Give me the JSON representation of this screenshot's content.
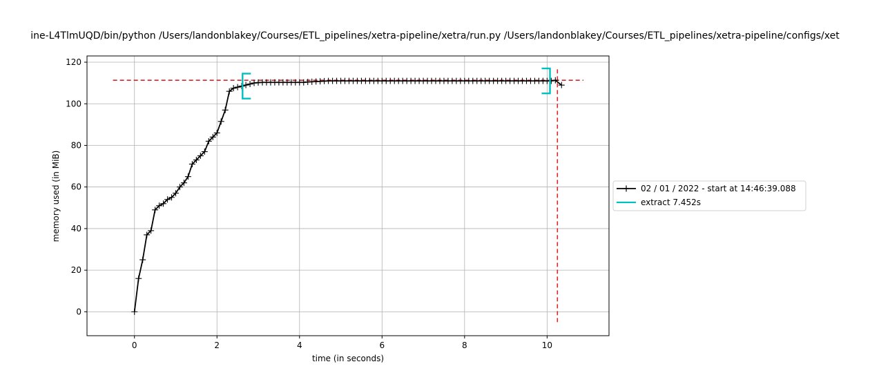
{
  "chart_data": {
    "type": "line",
    "title": "ine-L4TlmUQD/bin/python /Users/landonblakey/Courses/ETL_pipelines/xetra-pipeline/xetra/run.py /Users/landonblakey/Courses/ETL_pipelines/xetra-pipeline/configs/xet",
    "xlabel": "time (in seconds)",
    "ylabel": "memory used (in MiB)",
    "xlim": [
      -1.15,
      11.5
    ],
    "ylim": [
      -11.5,
      123
    ],
    "xticks": [
      0,
      2,
      4,
      6,
      8,
      10
    ],
    "yticks": [
      0,
      20,
      40,
      60,
      80,
      100,
      120
    ],
    "grid": true,
    "legend_position": "center-right outside",
    "series": [
      {
        "name": "02 / 01 / 2022 - start at 14:46:39.088",
        "color": "#000000",
        "marker": "plus",
        "x": [
          0,
          0.1,
          0.2,
          0.3,
          0.4,
          0.5,
          0.6,
          0.7,
          0.8,
          0.9,
          1.0,
          1.1,
          1.2,
          1.3,
          1.4,
          1.5,
          1.6,
          1.7,
          1.8,
          1.9,
          2.0,
          2.1,
          2.2,
          2.3,
          2.4,
          2.5,
          2.6,
          2.7,
          2.8,
          2.9,
          3.0,
          3.1,
          3.2,
          3.3,
          3.4,
          3.5,
          3.6,
          3.7,
          3.8,
          3.9,
          4.0,
          4.1,
          4.2,
          4.3,
          4.4,
          4.5,
          4.6,
          4.7,
          4.8,
          4.9,
          5.0,
          5.1,
          5.2,
          5.3,
          5.4,
          5.5,
          5.6,
          5.7,
          5.8,
          5.9,
          6.0,
          6.1,
          6.2,
          6.3,
          6.4,
          6.5,
          6.6,
          6.7,
          6.8,
          6.9,
          7.0,
          7.1,
          7.2,
          7.3,
          7.4,
          7.5,
          7.6,
          7.7,
          7.8,
          7.9,
          8.0,
          8.1,
          8.2,
          8.3,
          8.4,
          8.5,
          8.6,
          8.7,
          8.8,
          8.9,
          9.0,
          9.1,
          9.2,
          9.3,
          9.4,
          9.5,
          9.6,
          9.7,
          9.8,
          9.9,
          10.0,
          10.1,
          10.2,
          10.35
        ],
        "y": [
          0,
          16,
          25,
          37,
          39,
          49,
          51,
          52,
          54,
          55,
          57,
          60,
          62,
          65,
          71,
          73,
          75,
          77,
          82,
          84,
          86,
          91.5,
          97,
          106,
          107.5,
          108,
          108.5,
          109,
          109.5,
          110,
          110.2,
          110.3,
          110.3,
          110.3,
          110.3,
          110.3,
          110.3,
          110.3,
          110.3,
          110.3,
          110.3,
          110.3,
          110.5,
          110.6,
          110.7,
          110.8,
          110.9,
          111,
          111,
          111,
          111,
          111,
          111,
          111,
          111,
          111,
          111,
          111,
          111,
          111,
          111,
          111,
          111,
          111,
          111,
          111,
          111,
          111,
          111,
          111,
          111,
          111,
          111,
          111,
          111,
          111,
          111,
          111,
          111,
          111,
          111,
          111,
          111,
          111,
          111,
          111,
          111,
          111,
          111,
          111,
          111,
          111,
          111,
          111,
          111,
          111,
          111,
          111,
          111,
          111,
          111,
          111,
          111.3,
          109
        ]
      },
      {
        "name": "extract 7.452s",
        "color": "#00bfbf",
        "type": "bracket-pair",
        "x_start": 2.62,
        "x_end": 10.07,
        "y_start": [
          102.5,
          114.5
        ],
        "y_end": [
          105,
          117
        ]
      }
    ],
    "reference_lines": [
      {
        "orientation": "horizontal",
        "y": 111.3,
        "x_range": [
          -0.52,
          10.88
        ],
        "color": "#d62728",
        "style": "dashed"
      },
      {
        "orientation": "vertical",
        "x": 10.25,
        "y_range": [
          -5,
          117.5
        ],
        "color": "#d62728",
        "style": "dashed"
      }
    ]
  }
}
